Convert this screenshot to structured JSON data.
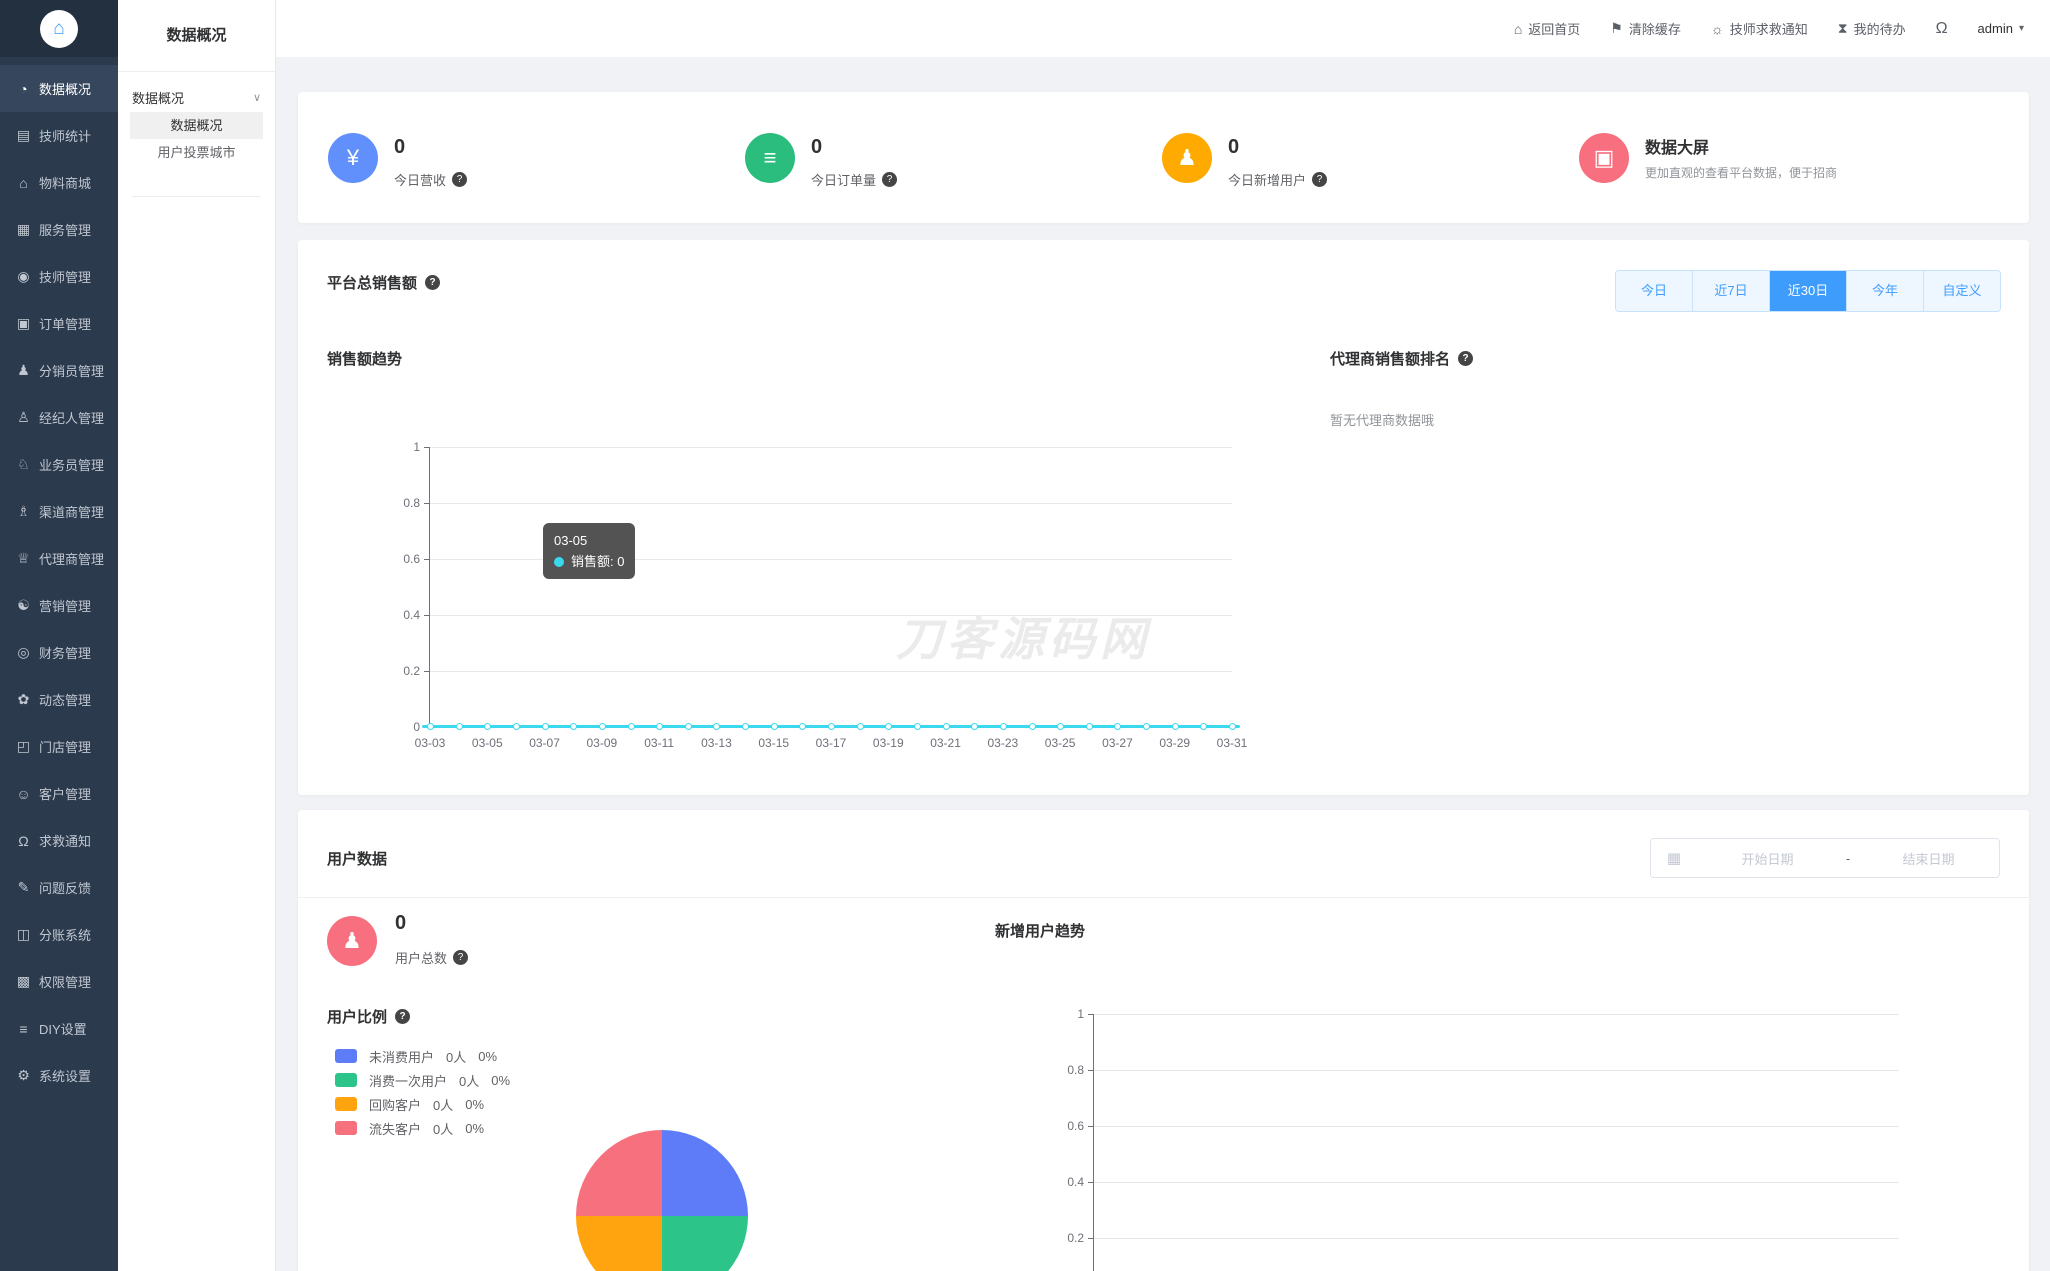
{
  "icons": {
    "help": "?",
    "home": "⌂",
    "caret_down": "▾",
    "chevron_down": "∨",
    "calendar": "▦",
    "bell": "Ω",
    "money": "¥",
    "order": "≡",
    "person": "♟",
    "monitor": "▣"
  },
  "colors": {
    "accent": "#409eff",
    "line": "#3bd9ee",
    "stat_blue": "#6190fc",
    "stat_green": "#2bbd7e",
    "stat_orange": "#ffaa00",
    "stat_pink": "#f8707f"
  },
  "sidebar": {
    "items": [
      {
        "label": "数据概况",
        "icon": "pie-chart",
        "glyph": "◔",
        "active": true
      },
      {
        "label": "技师统计",
        "icon": "bar-chart",
        "glyph": "▤"
      },
      {
        "label": "物料商城",
        "icon": "mall",
        "glyph": "⌂"
      },
      {
        "label": "服务管理",
        "icon": "service",
        "glyph": "▦"
      },
      {
        "label": "技师管理",
        "icon": "technician",
        "glyph": "◉"
      },
      {
        "label": "订单管理",
        "icon": "order",
        "glyph": "▣"
      },
      {
        "label": "分销员管理",
        "icon": "distributor",
        "glyph": "♟"
      },
      {
        "label": "经纪人管理",
        "icon": "broker",
        "glyph": "♙"
      },
      {
        "label": "业务员管理",
        "icon": "salesman",
        "glyph": "♘"
      },
      {
        "label": "渠道商管理",
        "icon": "channel",
        "glyph": "♗"
      },
      {
        "label": "代理商管理",
        "icon": "agent",
        "glyph": "♕"
      },
      {
        "label": "营销管理",
        "icon": "marketing",
        "glyph": "☯"
      },
      {
        "label": "财务管理",
        "icon": "finance",
        "glyph": "◎"
      },
      {
        "label": "动态管理",
        "icon": "news",
        "glyph": "✿"
      },
      {
        "label": "门店管理",
        "icon": "store",
        "glyph": "◰"
      },
      {
        "label": "客户管理",
        "icon": "customer",
        "glyph": "☺"
      },
      {
        "label": "求救通知",
        "icon": "sos-bell",
        "glyph": "Ω"
      },
      {
        "label": "问题反馈",
        "icon": "feedback",
        "glyph": "✎"
      },
      {
        "label": "分账系统",
        "icon": "ledger",
        "glyph": "◫"
      },
      {
        "label": "权限管理",
        "icon": "permission",
        "glyph": "▩"
      },
      {
        "label": "DIY设置",
        "icon": "diy",
        "glyph": "≡"
      },
      {
        "label": "系统设置",
        "icon": "gear",
        "glyph": "⚙"
      }
    ]
  },
  "submenu": {
    "title": "数据概况",
    "group_label": "数据概况",
    "items": [
      {
        "label": "数据概况",
        "active": true
      },
      {
        "label": "用户投票城市"
      }
    ]
  },
  "header": {
    "links": [
      {
        "label": "返回首页",
        "icon": "home",
        "glyph": "⌂"
      },
      {
        "label": "清除缓存",
        "icon": "clear-cache",
        "glyph": "⚑"
      },
      {
        "label": "技师求救通知",
        "icon": "siren",
        "glyph": "☼"
      },
      {
        "label": "我的待办",
        "icon": "todo",
        "glyph": "⧗"
      }
    ],
    "user": {
      "name": "admin"
    }
  },
  "stats": {
    "cards": [
      {
        "value": "0",
        "label": "今日营收",
        "icon": "money-bag",
        "glyph": "¥",
        "color": "#6190fc"
      },
      {
        "value": "0",
        "label": "今日订单量",
        "icon": "order-list",
        "glyph": "≡",
        "color": "#2bbd7e"
      },
      {
        "value": "0",
        "label": "今日新增用户",
        "icon": "new-user",
        "glyph": "♟",
        "color": "#ffaa00"
      }
    ],
    "screen": {
      "title": "数据大屏",
      "subtitle": "更加直观的查看平台数据，便于招商",
      "icon": "monitor-chart",
      "glyph": "▣",
      "color": "#f8707f"
    }
  },
  "sales": {
    "title": "平台总销售额",
    "tabs": [
      {
        "label": "今日"
      },
      {
        "label": "近7日"
      },
      {
        "label": "近30日",
        "active": true
      },
      {
        "label": "今年"
      },
      {
        "label": "自定义"
      }
    ],
    "watermark": "刀客源码网",
    "trend": {
      "title": "销售额趋势",
      "tooltip": {
        "title": "03-05",
        "text": "销售额: 0"
      },
      "chart": {
        "type": "line",
        "series_name": "销售额",
        "color": "#3bd9ee",
        "ylim": [
          0,
          1
        ],
        "y_ticks": [
          "1",
          "0.8",
          "0.6",
          "0.4",
          "0.2",
          "0"
        ],
        "x_labels": [
          "03-03",
          "03-05",
          "03-07",
          "03-09",
          "03-11",
          "03-13",
          "03-15",
          "03-17",
          "03-19",
          "03-21",
          "03-23",
          "03-25",
          "03-27",
          "03-29",
          "03-31"
        ],
        "num_points": 29,
        "values": [
          0,
          0,
          0,
          0,
          0,
          0,
          0,
          0,
          0,
          0,
          0,
          0,
          0,
          0,
          0,
          0,
          0,
          0,
          0,
          0,
          0,
          0,
          0,
          0,
          0,
          0,
          0,
          0,
          0
        ]
      }
    },
    "ranking": {
      "title": "代理商销售额排名",
      "empty_text": "暂无代理商数据哦"
    }
  },
  "users": {
    "title": "用户数据",
    "date_range": {
      "start_placeholder": "开始日期",
      "separator": "-",
      "end_placeholder": "结束日期"
    },
    "total": {
      "value": "0",
      "label": "用户总数",
      "color": "#f8707f",
      "glyph": "♟"
    },
    "ratio": {
      "title": "用户比例",
      "legend": [
        {
          "label": "未消费用户",
          "count": "0人",
          "percent": "0%",
          "color": "#5e7cf7"
        },
        {
          "label": "消费一次用户",
          "count": "0人",
          "percent": "0%",
          "color": "#2cc488"
        },
        {
          "label": "回购客户",
          "count": "0人",
          "percent": "0%",
          "color": "#ffa40f"
        },
        {
          "label": "流失客户",
          "count": "0人",
          "percent": "0%",
          "color": "#f7707d"
        }
      ],
      "pie": {
        "type": "pie",
        "slices": [
          {
            "label": "未消费用户",
            "color": "#5e7cf7",
            "deg": 90
          },
          {
            "label": "消费一次用户",
            "color": "#2cc488",
            "deg": 90
          },
          {
            "label": "回购客户",
            "color": "#ffa40f",
            "deg": 90
          },
          {
            "label": "流失客户",
            "color": "#f7707d",
            "deg": 90
          }
        ]
      }
    },
    "trend": {
      "title": "新增用户趋势",
      "chart": {
        "type": "line",
        "ylim": [
          0,
          1
        ],
        "y_ticks": [
          "1",
          "0.8",
          "0.6",
          "0.4",
          "0.2"
        ]
      }
    }
  }
}
